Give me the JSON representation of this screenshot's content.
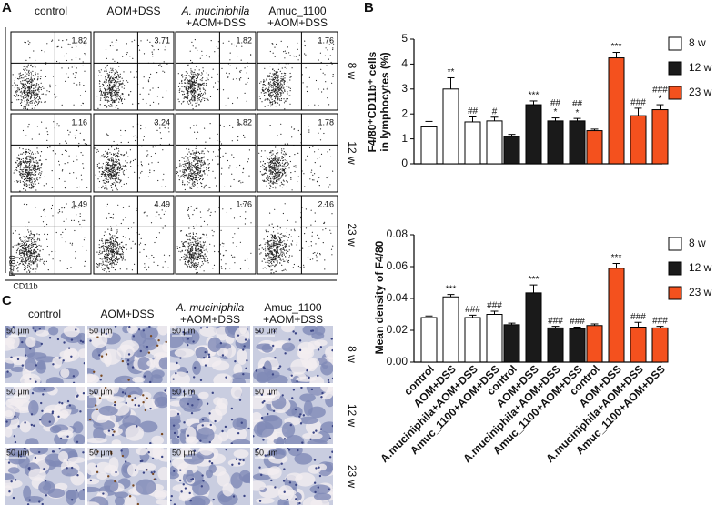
{
  "flow_cytometry": {
    "label": "A",
    "columns": [
      [
        "control"
      ],
      [
        "AOM+DSS"
      ],
      [
        "A. muciniphila",
        "+AOM+DSS"
      ],
      [
        "Amuc_1100",
        "+AOM+DSS"
      ]
    ],
    "rows": [
      "8 w",
      "12 w",
      "23 w"
    ],
    "percentages": [
      [
        1.82,
        3.71,
        1.82,
        1.76
      ],
      [
        1.16,
        3.24,
        1.82,
        1.78
      ],
      [
        1.49,
        4.49,
        1.76,
        2.16
      ]
    ],
    "y_axis": "F4/80",
    "x_axis": "CD11b"
  },
  "histology": {
    "label": "C",
    "columns": [
      [
        "control"
      ],
      [
        "AOM+DSS"
      ],
      [
        "A. muciniphila",
        "+AOM+DSS"
      ],
      [
        "Amuc_1100",
        "+AOM+DSS"
      ]
    ],
    "rows": [
      "8 w",
      "12 w",
      "23 w"
    ],
    "scale": "50 μm"
  },
  "panel_b_label": "B",
  "chart_data": [
    {
      "type": "bar",
      "ylabel": [
        "F4/80⁺CD11b⁺ cells",
        "in lymphocytes (%)"
      ],
      "ylim": [
        0,
        5
      ],
      "yticks": [
        0,
        1,
        2,
        3,
        4,
        5
      ],
      "series": [
        {
          "name": "8 w",
          "color": "#ffffff",
          "values": [
            1.48,
            3.0,
            1.68,
            1.72
          ],
          "errors": [
            0.22,
            0.45,
            0.2,
            0.15
          ],
          "annotations": [
            null,
            [
              "**"
            ],
            [
              "##"
            ],
            [
              "#"
            ]
          ]
        },
        {
          "name": "12 w",
          "color": "#1a1a1a",
          "values": [
            1.1,
            2.37,
            1.72,
            1.72
          ],
          "errors": [
            0.08,
            0.15,
            0.12,
            0.1
          ],
          "annotations": [
            null,
            [
              "***"
            ],
            [
              "##",
              "*"
            ],
            [
              "##",
              "*"
            ]
          ]
        },
        {
          "name": "23 w",
          "color": "#f4511e",
          "values": [
            1.33,
            4.25,
            1.93,
            2.17
          ],
          "errors": [
            0.06,
            0.22,
            0.3,
            0.2
          ],
          "annotations": [
            null,
            [
              "***"
            ],
            [
              "###"
            ],
            [
              "###",
              "*"
            ]
          ]
        }
      ]
    },
    {
      "type": "bar",
      "ylabel": [
        "Mean density of F4/80"
      ],
      "categories": [
        "control",
        "AOM+DSS",
        "A.muciniphila+AOM+DSS",
        "Amuc_1100+AOM+DSS"
      ],
      "ylim": [
        0,
        0.08
      ],
      "yticks": [
        {
          "value": 0,
          "label": "0.00"
        },
        0.02,
        0.04,
        0.06,
        0.08
      ],
      "series": [
        {
          "name": "8 w",
          "color": "#ffffff",
          "values": [
            0.028,
            0.041,
            0.028,
            0.03
          ],
          "errors": [
            0.001,
            0.0015,
            0.0015,
            0.002
          ],
          "annotations": [
            null,
            [
              "***"
            ],
            [
              "###"
            ],
            [
              "###"
            ]
          ]
        },
        {
          "name": "12 w",
          "color": "#1a1a1a",
          "values": [
            0.0235,
            0.0435,
            0.0215,
            0.021
          ],
          "errors": [
            0.001,
            0.005,
            0.001,
            0.001
          ],
          "annotations": [
            null,
            [
              "***"
            ],
            [
              "###"
            ],
            [
              "###"
            ]
          ]
        },
        {
          "name": "23 w",
          "color": "#f4511e",
          "values": [
            0.023,
            0.059,
            0.022,
            0.0215
          ],
          "errors": [
            0.001,
            0.003,
            0.003,
            0.001
          ],
          "annotations": [
            null,
            [
              "***"
            ],
            [
              "###"
            ],
            [
              "###"
            ]
          ]
        }
      ]
    }
  ]
}
